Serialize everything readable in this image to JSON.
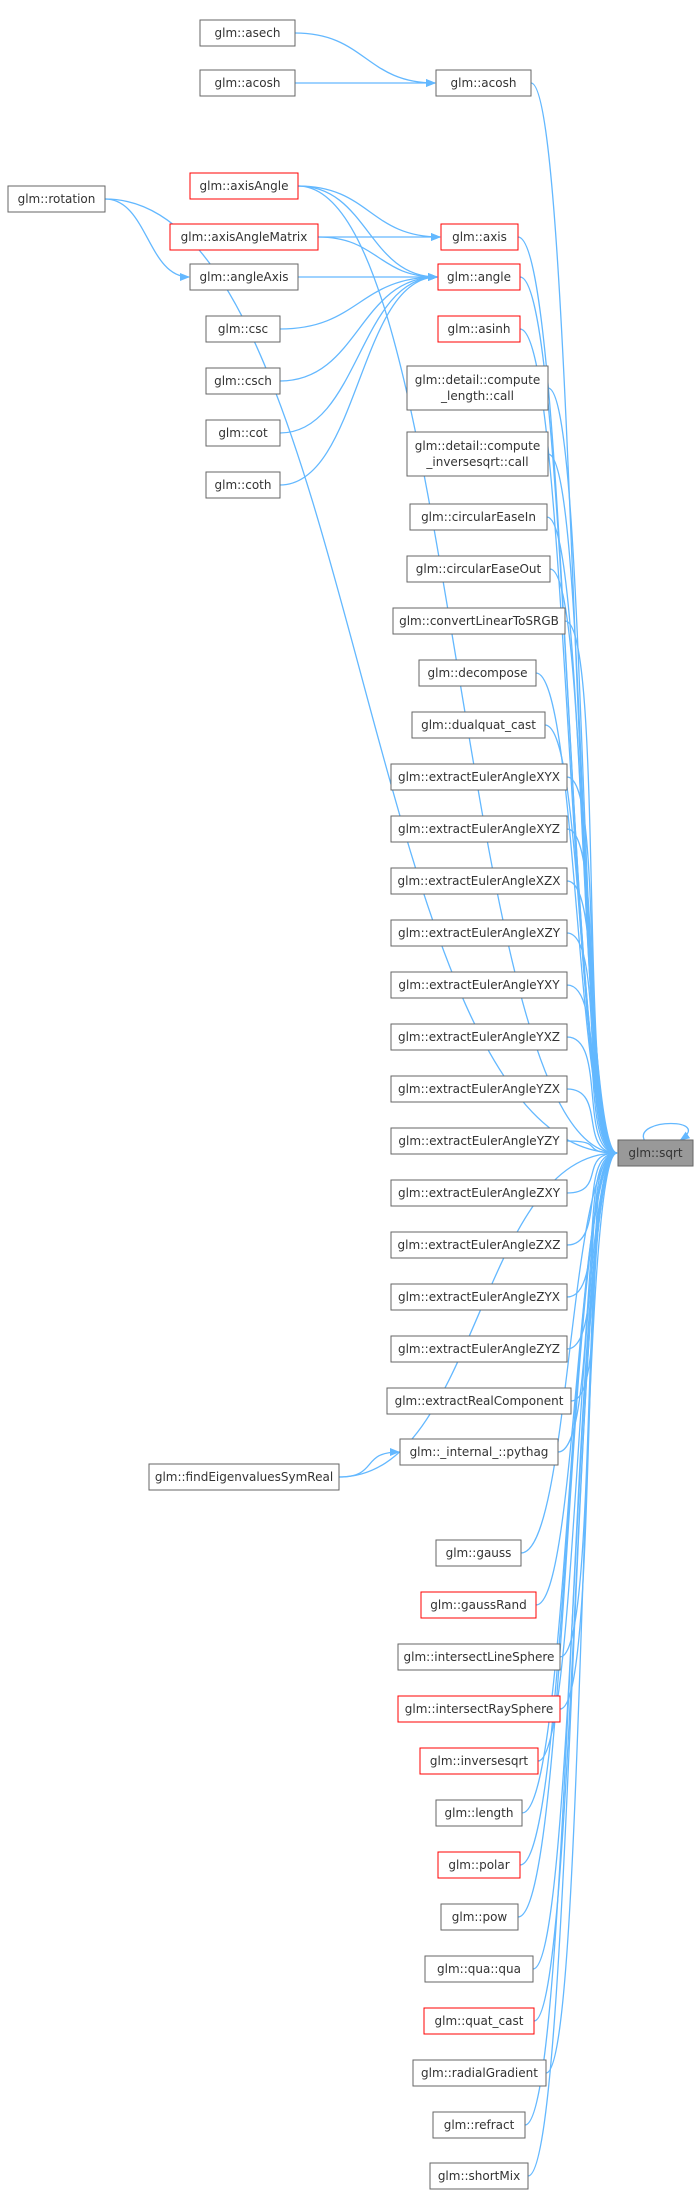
{
  "diagram": {
    "edge_color": "#63b8ff",
    "node_border": "#666666",
    "highlight_border": "#ff0000",
    "focus_fill": "#999999",
    "nodes": [
      {
        "id": "sqrt",
        "label": "glm::sqrt",
        "style": "focus"
      },
      {
        "id": "asech",
        "label": "glm::asech",
        "style": "normal"
      },
      {
        "id": "acosh_a",
        "label": "glm::acosh",
        "style": "normal"
      },
      {
        "id": "acosh_b",
        "label": "glm::acosh",
        "style": "normal"
      },
      {
        "id": "rotation",
        "label": "glm::rotation",
        "style": "normal"
      },
      {
        "id": "axisAngle",
        "label": "glm::axisAngle",
        "style": "red"
      },
      {
        "id": "axisAngleMatrix",
        "label": "glm::axisAngleMatrix",
        "style": "red"
      },
      {
        "id": "axis",
        "label": "glm::axis",
        "style": "red"
      },
      {
        "id": "angleAxis",
        "label": "glm::angleAxis",
        "style": "normal"
      },
      {
        "id": "angle",
        "label": "glm::angle",
        "style": "red"
      },
      {
        "id": "csc",
        "label": "glm::csc",
        "style": "normal"
      },
      {
        "id": "csch",
        "label": "glm::csch",
        "style": "normal"
      },
      {
        "id": "cot",
        "label": "glm::cot",
        "style": "normal"
      },
      {
        "id": "coth",
        "label": "glm::coth",
        "style": "normal"
      },
      {
        "id": "asinh",
        "label": "glm::asinh",
        "style": "red"
      },
      {
        "id": "compute_length",
        "label": "glm::detail::compute\n_length::call",
        "style": "normal"
      },
      {
        "id": "compute_inversesqrt",
        "label": "glm::detail::compute\n_inversesqrt::call",
        "style": "normal"
      },
      {
        "id": "circularEaseIn",
        "label": "glm::circularEaseIn",
        "style": "normal"
      },
      {
        "id": "circularEaseOut",
        "label": "glm::circularEaseOut",
        "style": "normal"
      },
      {
        "id": "convertLinearToSRGB",
        "label": "glm::convertLinearToSRGB",
        "style": "normal"
      },
      {
        "id": "decompose",
        "label": "glm::decompose",
        "style": "normal"
      },
      {
        "id": "dualquat_cast",
        "label": "glm::dualquat_cast",
        "style": "normal"
      },
      {
        "id": "eXYX",
        "label": "glm::extractEulerAngleXYX",
        "style": "normal"
      },
      {
        "id": "eXYZ",
        "label": "glm::extractEulerAngleXYZ",
        "style": "normal"
      },
      {
        "id": "eXZX",
        "label": "glm::extractEulerAngleXZX",
        "style": "normal"
      },
      {
        "id": "eXZY",
        "label": "glm::extractEulerAngleXZY",
        "style": "normal"
      },
      {
        "id": "eYXY",
        "label": "glm::extractEulerAngleYXY",
        "style": "normal"
      },
      {
        "id": "eYXZ",
        "label": "glm::extractEulerAngleYXZ",
        "style": "normal"
      },
      {
        "id": "eYZX",
        "label": "glm::extractEulerAngleYZX",
        "style": "normal"
      },
      {
        "id": "eYZY",
        "label": "glm::extractEulerAngleYZY",
        "style": "normal"
      },
      {
        "id": "eZXY",
        "label": "glm::extractEulerAngleZXY",
        "style": "normal"
      },
      {
        "id": "eZXZ",
        "label": "glm::extractEulerAngleZXZ",
        "style": "normal"
      },
      {
        "id": "eZYX",
        "label": "glm::extractEulerAngleZYX",
        "style": "normal"
      },
      {
        "id": "eZYZ",
        "label": "glm::extractEulerAngleZYZ",
        "style": "normal"
      },
      {
        "id": "extractRealComponent",
        "label": "glm::extractRealComponent",
        "style": "normal"
      },
      {
        "id": "pythag",
        "label": "glm::_internal_::pythag",
        "style": "normal"
      },
      {
        "id": "findEigen",
        "label": "glm::findEigenvaluesSymReal",
        "style": "normal"
      },
      {
        "id": "gauss",
        "label": "glm::gauss",
        "style": "normal"
      },
      {
        "id": "gaussRand",
        "label": "glm::gaussRand",
        "style": "red"
      },
      {
        "id": "intersectLineSphere",
        "label": "glm::intersectLineSphere",
        "style": "normal"
      },
      {
        "id": "intersectRaySphere",
        "label": "glm::intersectRaySphere",
        "style": "red"
      },
      {
        "id": "inversesqrt",
        "label": "glm::inversesqrt",
        "style": "red"
      },
      {
        "id": "length",
        "label": "glm::length",
        "style": "normal"
      },
      {
        "id": "polar",
        "label": "glm::polar",
        "style": "red"
      },
      {
        "id": "pow",
        "label": "glm::pow",
        "style": "normal"
      },
      {
        "id": "qua",
        "label": "glm::qua::qua",
        "style": "normal"
      },
      {
        "id": "quat_cast",
        "label": "glm::quat_cast",
        "style": "red"
      },
      {
        "id": "radialGradient",
        "label": "glm::radialGradient",
        "style": "normal"
      },
      {
        "id": "refract",
        "label": "glm::refract",
        "style": "normal"
      },
      {
        "id": "shortMix",
        "label": "glm::shortMix",
        "style": "normal"
      }
    ],
    "edges": [
      [
        "asech",
        "acosh_b"
      ],
      [
        "acosh_a",
        "acosh_b"
      ],
      [
        "acosh_b",
        "sqrt"
      ],
      [
        "rotation",
        "sqrt"
      ],
      [
        "axisAngle",
        "sqrt"
      ],
      [
        "axisAngle",
        "axis"
      ],
      [
        "axisAngle",
        "angle"
      ],
      [
        "axisAngleMatrix",
        "axis"
      ],
      [
        "axisAngleMatrix",
        "angle"
      ],
      [
        "rotation",
        "angleAxis"
      ],
      [
        "angleAxis",
        "angle"
      ],
      [
        "axis",
        "sqrt"
      ],
      [
        "angle",
        "sqrt"
      ],
      [
        "csc",
        "angle"
      ],
      [
        "csch",
        "angle"
      ],
      [
        "cot",
        "angle"
      ],
      [
        "coth",
        "angle"
      ],
      [
        "asinh",
        "sqrt"
      ],
      [
        "compute_length",
        "sqrt"
      ],
      [
        "compute_inversesqrt",
        "sqrt"
      ],
      [
        "circularEaseIn",
        "sqrt"
      ],
      [
        "circularEaseOut",
        "sqrt"
      ],
      [
        "convertLinearToSRGB",
        "sqrt"
      ],
      [
        "decompose",
        "sqrt"
      ],
      [
        "dualquat_cast",
        "sqrt"
      ],
      [
        "eXYX",
        "sqrt"
      ],
      [
        "eXYZ",
        "sqrt"
      ],
      [
        "eXZX",
        "sqrt"
      ],
      [
        "eXZY",
        "sqrt"
      ],
      [
        "eYXY",
        "sqrt"
      ],
      [
        "eYXZ",
        "sqrt"
      ],
      [
        "eYZX",
        "sqrt"
      ],
      [
        "eYZY",
        "sqrt"
      ],
      [
        "eZXY",
        "sqrt"
      ],
      [
        "eZXZ",
        "sqrt"
      ],
      [
        "eZYX",
        "sqrt"
      ],
      [
        "eZYZ",
        "sqrt"
      ],
      [
        "extractRealComponent",
        "sqrt"
      ],
      [
        "pythag",
        "sqrt"
      ],
      [
        "findEigen",
        "pythag"
      ],
      [
        "findEigen",
        "sqrt"
      ],
      [
        "gauss",
        "sqrt"
      ],
      [
        "gaussRand",
        "sqrt"
      ],
      [
        "intersectLineSphere",
        "sqrt"
      ],
      [
        "intersectRaySphere",
        "sqrt"
      ],
      [
        "inversesqrt",
        "sqrt"
      ],
      [
        "length",
        "sqrt"
      ],
      [
        "polar",
        "sqrt"
      ],
      [
        "pow",
        "sqrt"
      ],
      [
        "qua",
        "sqrt"
      ],
      [
        "quat_cast",
        "sqrt"
      ],
      [
        "radialGradient",
        "sqrt"
      ],
      [
        "refract",
        "sqrt"
      ],
      [
        "shortMix",
        "sqrt"
      ],
      [
        "sqrt",
        "sqrt"
      ]
    ]
  }
}
